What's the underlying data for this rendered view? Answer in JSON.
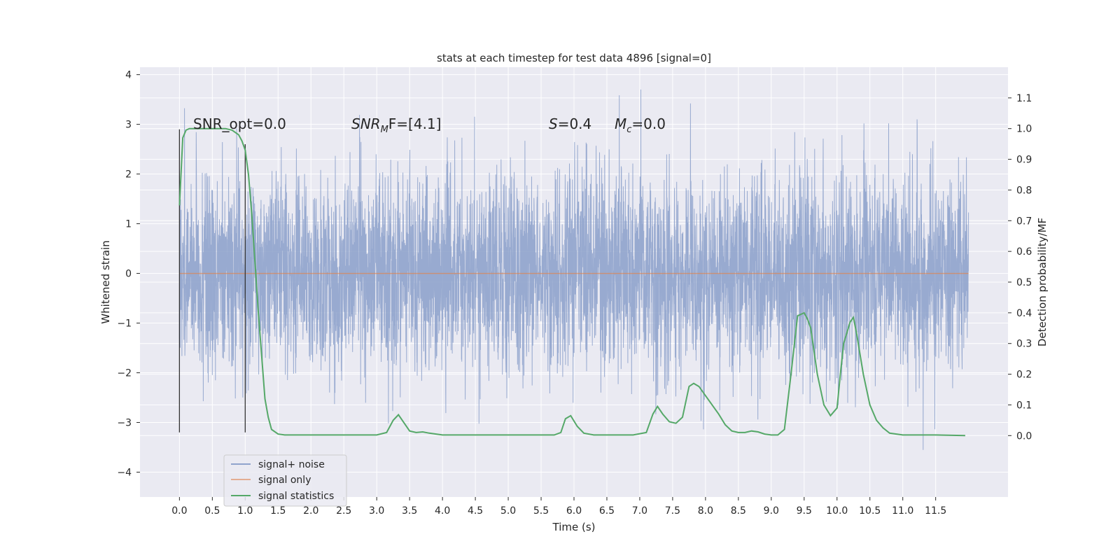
{
  "chart_data": {
    "type": "line",
    "title": "stats at each timestep for test data 4896 [signal=0]",
    "xlabel": "Time (s)",
    "ylabel_left": "Whitened strain",
    "ylabel_right": "Detection probability/MF",
    "xlim": [
      -0.6,
      12.6
    ],
    "ylim_left": [
      -4.5,
      4.15
    ],
    "ylim_right": [
      -0.2,
      1.2
    ],
    "xticks": [
      0.0,
      0.5,
      1.0,
      1.5,
      2.0,
      2.5,
      3.0,
      3.5,
      4.0,
      4.5,
      5.0,
      5.5,
      6.0,
      6.5,
      7.0,
      7.5,
      8.0,
      8.5,
      9.0,
      9.5,
      10.0,
      10.5,
      11.0,
      11.5
    ],
    "xtick_labels": [
      "0.0",
      "0.5",
      "1.0",
      "1.5",
      "2.0",
      "2.5",
      "3.0",
      "3.5",
      "4.0",
      "4.5",
      "5.0",
      "5.5",
      "6.0",
      "6.5",
      "7.0",
      "7.5",
      "8.0",
      "8.5",
      "9.0",
      "9.5",
      "10.0",
      "10.5",
      "11.0",
      "11.5"
    ],
    "yticks_left": [
      -4,
      -3,
      -2,
      -1,
      0,
      1,
      2,
      3,
      4
    ],
    "ytick_labels_left": [
      "−4",
      "−3",
      "−2",
      "−1",
      "0",
      "1",
      "2",
      "3",
      "4"
    ],
    "yticks_right": [
      0.0,
      0.1,
      0.2,
      0.3,
      0.4,
      0.5,
      0.6,
      0.7,
      0.8,
      0.9,
      1.0,
      1.1
    ],
    "ytick_labels_right": [
      "0.0",
      "0.1",
      "0.2",
      "0.3",
      "0.4",
      "0.5",
      "0.6",
      "0.7",
      "0.8",
      "0.9",
      "1.0",
      "1.1"
    ],
    "grid": true,
    "legend_position": "lower-left",
    "colors": {
      "background": "#eaeaf2",
      "grid": "#ffffff",
      "noise": "#8fa3cc",
      "signal_only": "#dd8452",
      "statistics": "#55a868",
      "markers": "#333333"
    },
    "annotations": {
      "snr_opt": "SNR_opt=0.0",
      "snr_mf_sym": "SNR",
      "snr_mf_sub": "M",
      "snr_mf_tail": "F=[4.1]",
      "s_sym": "S",
      "s_val": "=0.4",
      "mc_sym": "M",
      "mc_sub": "c",
      "mc_val": "=0.0"
    },
    "series": [
      {
        "name": "signal+ noise",
        "axis": "left",
        "t_start": 0.0,
        "t_end": 12.0,
        "sigma": 1.0
      },
      {
        "name": "signal only",
        "axis": "left",
        "x": [
          0.0,
          12.0
        ],
        "values": [
          0.0,
          0.0
        ]
      },
      {
        "name": "signal statistics",
        "axis": "right",
        "x": [
          0.0,
          0.05,
          0.1,
          0.15,
          0.2,
          0.3,
          0.5,
          0.7,
          0.8,
          0.9,
          0.95,
          1.0,
          1.05,
          1.1,
          1.2,
          1.3,
          1.35,
          1.4,
          1.5,
          1.6,
          2.0,
          2.5,
          3.0,
          3.15,
          3.25,
          3.33,
          3.42,
          3.5,
          3.6,
          3.7,
          3.8,
          4.0,
          5.0,
          5.7,
          5.8,
          5.87,
          5.95,
          6.05,
          6.15,
          6.3,
          6.5,
          6.9,
          7.1,
          7.2,
          7.27,
          7.35,
          7.45,
          7.55,
          7.65,
          7.75,
          7.82,
          7.9,
          8.0,
          8.1,
          8.2,
          8.3,
          8.4,
          8.5,
          8.6,
          8.7,
          8.8,
          8.9,
          9.0,
          9.1,
          9.2,
          9.3,
          9.4,
          9.5,
          9.55,
          9.6,
          9.7,
          9.8,
          9.9,
          10.0,
          10.05,
          10.1,
          10.2,
          10.25,
          10.3,
          10.4,
          10.5,
          10.6,
          10.7,
          10.8,
          11.0,
          11.5,
          11.95
        ],
        "values": [
          0.75,
          0.97,
          0.995,
          1.0,
          1.0,
          1.0,
          1.0,
          1.0,
          0.995,
          0.98,
          0.96,
          0.93,
          0.85,
          0.72,
          0.4,
          0.12,
          0.06,
          0.02,
          0.005,
          0.002,
          0.002,
          0.002,
          0.002,
          0.01,
          0.05,
          0.068,
          0.04,
          0.015,
          0.01,
          0.012,
          0.008,
          0.002,
          0.002,
          0.002,
          0.01,
          0.055,
          0.065,
          0.03,
          0.008,
          0.002,
          0.002,
          0.002,
          0.01,
          0.07,
          0.095,
          0.07,
          0.045,
          0.04,
          0.06,
          0.16,
          0.17,
          0.16,
          0.13,
          0.1,
          0.07,
          0.035,
          0.015,
          0.01,
          0.01,
          0.015,
          0.012,
          0.005,
          0.002,
          0.002,
          0.02,
          0.2,
          0.39,
          0.4,
          0.38,
          0.35,
          0.2,
          0.1,
          0.065,
          0.09,
          0.2,
          0.3,
          0.37,
          0.385,
          0.33,
          0.2,
          0.1,
          0.05,
          0.025,
          0.008,
          0.002,
          0.002,
          0.0
        ]
      }
    ],
    "vertical_markers": [
      {
        "x": 0.0,
        "y0": -3.2,
        "y1": 2.9
      },
      {
        "x": 1.0,
        "y0": -3.2,
        "y1": 2.6
      }
    ]
  }
}
